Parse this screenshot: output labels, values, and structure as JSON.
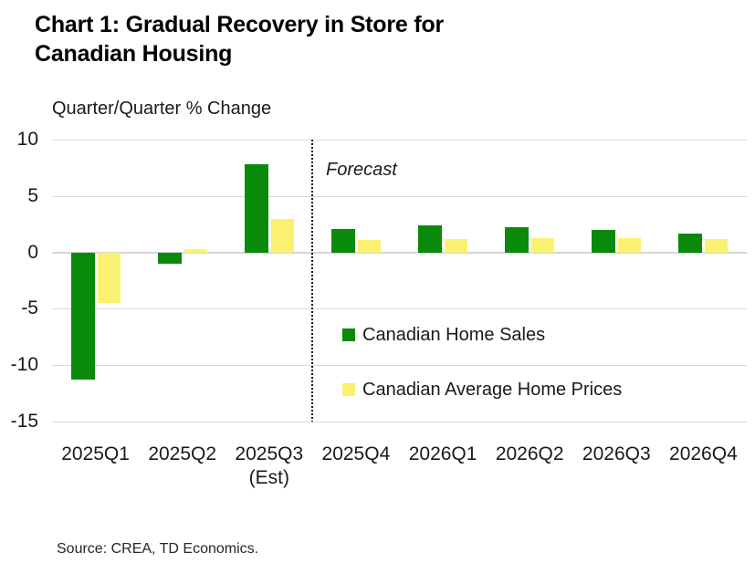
{
  "figure": {
    "title_lines": [
      "Chart 1: Gradual Recovery in Store for",
      "Canadian Housing"
    ],
    "axis_title": "Quarter/Quarter % Change",
    "forecast_label": "Forecast",
    "source": "Source: CREA, TD Economics."
  },
  "chart_data": {
    "type": "bar",
    "title": "Chart 1: Gradual Recovery in Store for Canadian Housing",
    "ylabel": "Quarter/Quarter % Change",
    "xlabel": "",
    "categories": [
      "2025Q1",
      "2025Q2",
      "2025Q3",
      "2025Q4",
      "2026Q1",
      "2026Q2",
      "2026Q3",
      "2026Q4"
    ],
    "category_sublabels": [
      "",
      "",
      "(Est)",
      "",
      "",
      "",
      "",
      ""
    ],
    "series": [
      {
        "name": "Canadian Home Sales",
        "color": "#0a8a0a",
        "values": [
          -11.3,
          -1.0,
          7.8,
          2.1,
          2.4,
          2.2,
          2.0,
          1.7
        ]
      },
      {
        "name": "Canadian Average Home Prices",
        "color": "#fbf170",
        "values": [
          -4.5,
          0.3,
          3.0,
          1.1,
          1.2,
          1.3,
          1.3,
          1.2
        ]
      }
    ],
    "ylim": [
      -15,
      10
    ],
    "yticks": [
      10,
      5,
      0,
      -5,
      -10,
      -15
    ],
    "grid": "horizontal",
    "gridline_color": "#d9d9d9",
    "legend_position": "inside-right",
    "forecast_divider_after_category": "2025Q3",
    "annotations": [
      "Forecast"
    ]
  }
}
